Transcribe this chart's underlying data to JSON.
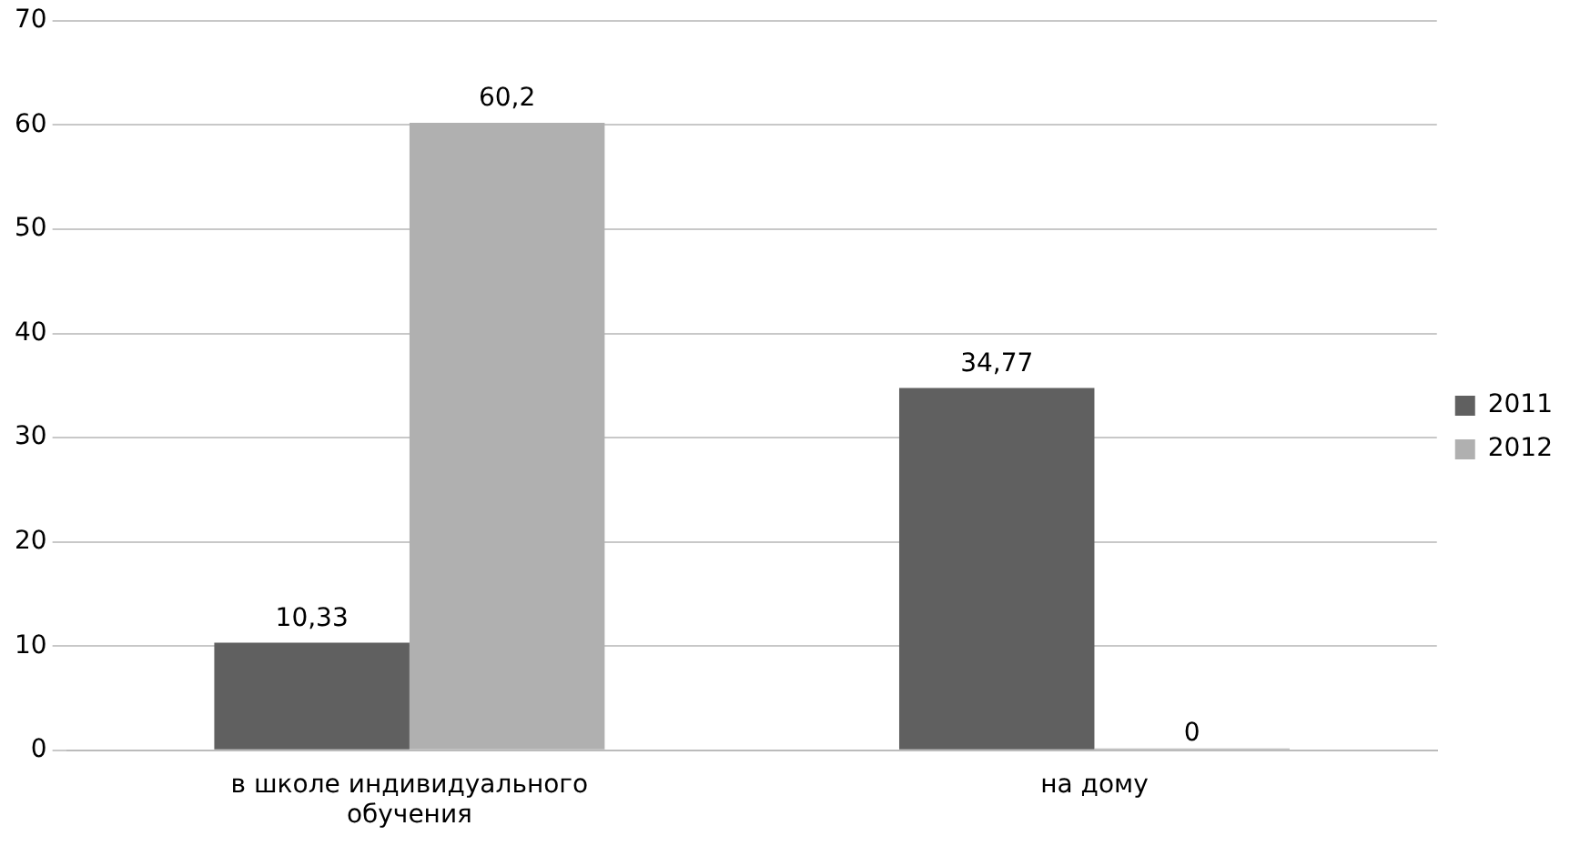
{
  "chart_data": {
    "type": "bar",
    "categories": [
      "в школе индивидуального обучения",
      "на дому"
    ],
    "series": [
      {
        "name": "2011",
        "color": "#606060",
        "values": [
          10.33,
          34.77
        ],
        "value_labels": [
          "10,33",
          "34,77"
        ]
      },
      {
        "name": "2012",
        "color": "#b0b0b0",
        "values": [
          60.2,
          0
        ],
        "value_labels": [
          "60,2",
          "0"
        ]
      }
    ],
    "ylim": [
      0,
      70
    ],
    "yticks": [
      0,
      10,
      20,
      30,
      40,
      50,
      60,
      70
    ],
    "grid": "y",
    "legend": "right"
  }
}
